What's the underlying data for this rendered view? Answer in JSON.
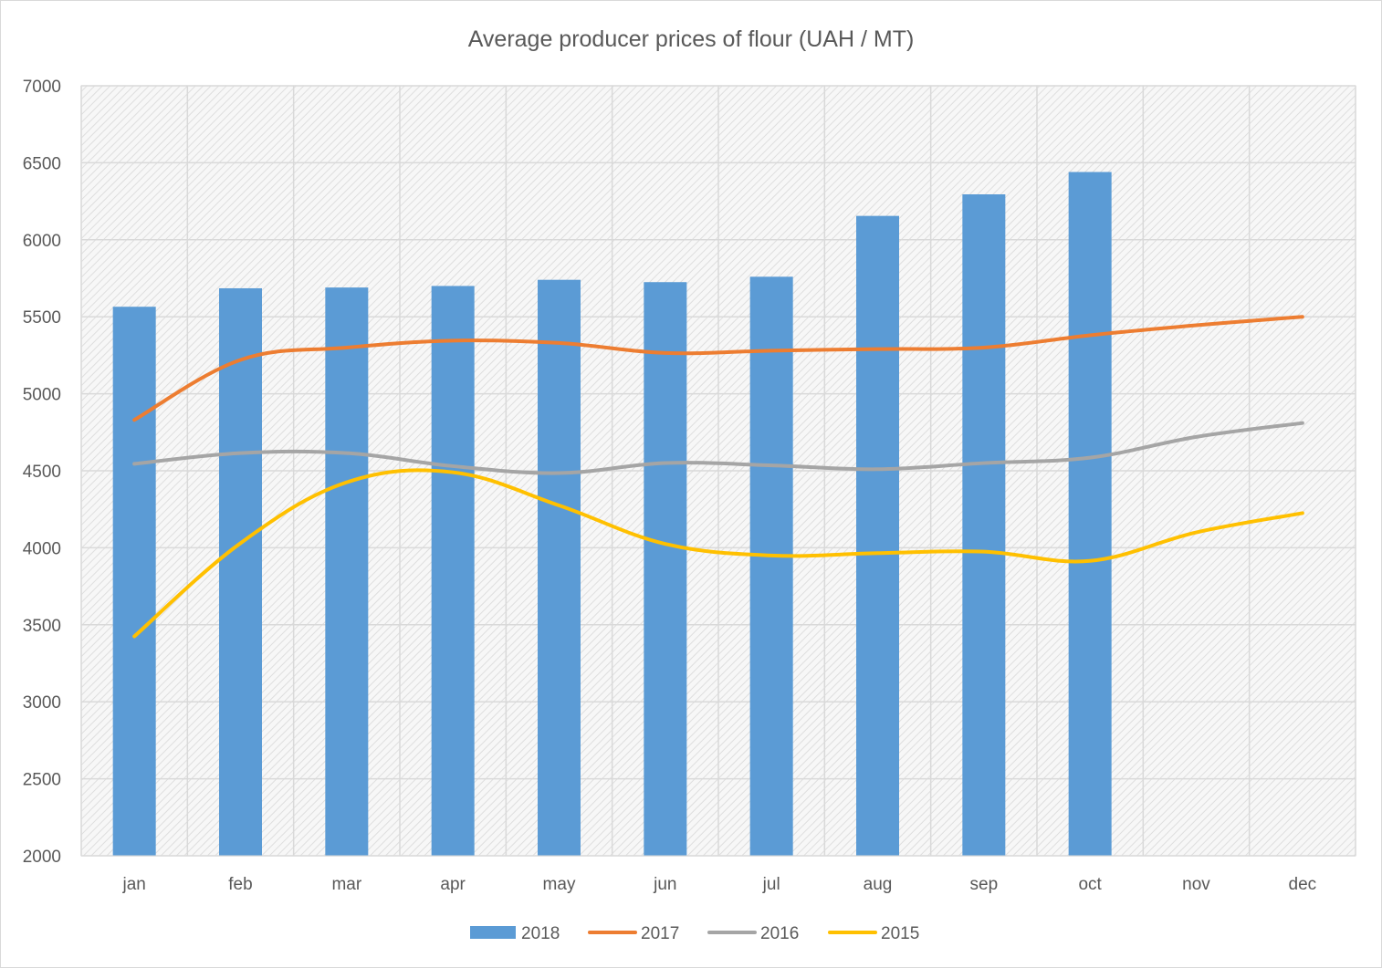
{
  "chart_data": {
    "type": "bar",
    "title": "Average producer prices of flour (UAH / MT)",
    "categories": [
      "jan",
      "feb",
      "mar",
      "apr",
      "may",
      "jun",
      "jul",
      "aug",
      "sep",
      "oct",
      "nov",
      "dec"
    ],
    "ylim": [
      2000,
      7000
    ],
    "yticks": [
      2000,
      2500,
      3000,
      3500,
      4000,
      4500,
      5000,
      5500,
      6000,
      6500,
      7000
    ],
    "grid": true,
    "legend_position": "bottom",
    "series": [
      {
        "name": "2018",
        "type": "bar",
        "color": "#5b9bd5",
        "values": [
          5565,
          5685,
          5690,
          5700,
          5740,
          5725,
          5760,
          6155,
          6295,
          6440,
          null,
          null
        ]
      },
      {
        "name": "2017",
        "type": "line",
        "color": "#ed7d31",
        "values": [
          4830,
          5220,
          5300,
          5345,
          5330,
          5265,
          5280,
          5290,
          5300,
          5380,
          5445,
          5500
        ]
      },
      {
        "name": "2016",
        "type": "line",
        "color": "#a5a5a5",
        "values": [
          4545,
          4615,
          4615,
          4530,
          4485,
          4550,
          4535,
          4510,
          4550,
          4585,
          4720,
          4810
        ]
      },
      {
        "name": "2015",
        "type": "line",
        "color": "#ffc000",
        "values": [
          3425,
          4030,
          4425,
          4490,
          4275,
          4025,
          3950,
          3965,
          3975,
          3915,
          4100,
          4225
        ]
      }
    ]
  }
}
